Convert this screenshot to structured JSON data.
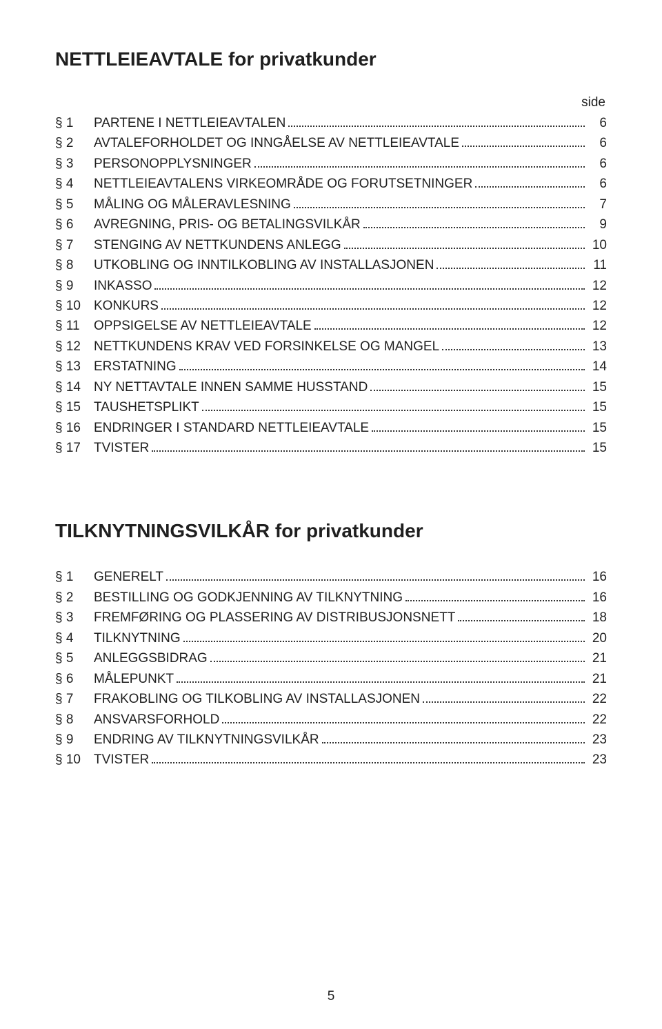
{
  "page_number": "5",
  "side_label": "side",
  "text_color": "#1f1f1f",
  "background_color": "#ffffff",
  "leader_color": "#333333",
  "title_fontsize": 28,
  "body_fontsize": 19,
  "sections": [
    {
      "title": "NETTLEIEAVTALE for privatkunder",
      "show_side_label": true,
      "items": [
        {
          "ref": "§ 1",
          "title": "PARTENE I NETTLEIEAVTALEN",
          "page": "6"
        },
        {
          "ref": "§ 2",
          "title": "AVTALEFORHOLDET OG INNGÅELSE AV NETTLEIEAVTALE",
          "page": "6"
        },
        {
          "ref": "§ 3",
          "title": "PERSONOPPLYSNINGER",
          "page": "6"
        },
        {
          "ref": "§ 4",
          "title": "NETTLEIEAVTALENS VIRKEOMRÅDE OG FORUTSETNINGER",
          "page": "6"
        },
        {
          "ref": "§ 5",
          "title": "MÅLING OG MÅLERAVLESNING",
          "page": "7"
        },
        {
          "ref": "§ 6",
          "title": "AVREGNING, PRIS- OG BETALINGSVILKÅR",
          "page": "9"
        },
        {
          "ref": "§ 7",
          "title": "STENGING AV NETTKUNDENS ANLEGG",
          "page": "10"
        },
        {
          "ref": "§ 8",
          "title": "UTKOBLING OG INNTILKOBLING AV INSTALLASJONEN",
          "page": "11"
        },
        {
          "ref": "§ 9",
          "title": "INKASSO",
          "page": "12"
        },
        {
          "ref": "§ 10",
          "title": "KONKURS",
          "page": "12"
        },
        {
          "ref": "§ 11",
          "title": "OPPSIGELSE AV NETTLEIEAVTALE",
          "page": "12"
        },
        {
          "ref": "§ 12",
          "title": "NETTKUNDENS KRAV VED FORSINKELSE OG MANGEL",
          "page": "13"
        },
        {
          "ref": "§ 13",
          "title": "ERSTATNING",
          "page": "14"
        },
        {
          "ref": "§ 14",
          "title": "NY NETTAVTALE INNEN SAMME HUSSTAND",
          "page": "15"
        },
        {
          "ref": "§ 15",
          "title": "TAUSHETSPLIKT",
          "page": "15"
        },
        {
          "ref": "§ 16",
          "title": "ENDRINGER I STANDARD NETTLEIEAVTALE",
          "page": "15"
        },
        {
          "ref": "§ 17",
          "title": "TVISTER",
          "page": "15"
        }
      ]
    },
    {
      "title": "TILKNYTNINGSVILKÅR for privatkunder",
      "show_side_label": false,
      "items": [
        {
          "ref": "§ 1",
          "title": "GENERELT",
          "page": "16"
        },
        {
          "ref": "§ 2",
          "title": "BESTILLING OG GODKJENNING AV TILKNYTNING",
          "page": "16"
        },
        {
          "ref": "§ 3",
          "title": "FREMFØRING OG PLASSERING AV DISTRIBUSJONSNETT",
          "page": "18"
        },
        {
          "ref": "§ 4",
          "title": "TILKNYTNING",
          "page": "20"
        },
        {
          "ref": "§ 5",
          "title": "ANLEGGSBIDRAG",
          "page": "21"
        },
        {
          "ref": "§ 6",
          "title": "MÅLEPUNKT",
          "page": "21"
        },
        {
          "ref": "§ 7",
          "title": "FRAKOBLING OG TILKOBLING AV INSTALLASJONEN",
          "page": "22"
        },
        {
          "ref": "§ 8",
          "title": "ANSVARSFORHOLD",
          "page": "22"
        },
        {
          "ref": "§ 9",
          "title": "ENDRING AV TILKNYTNINGSVILKÅR",
          "page": "23"
        },
        {
          "ref": "§ 10",
          "title": "TVISTER",
          "page": "23"
        }
      ]
    }
  ]
}
